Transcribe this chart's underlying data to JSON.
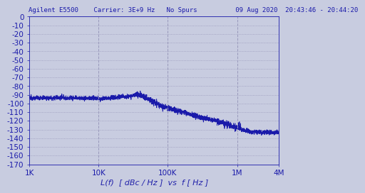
{
  "title_line": "Agilent E5500    Carrier: 3E+9 Hz   No Spurs          09 Aug 2020  20:43:46 - 20:44:20",
  "xlabel": "L(f)  [ dBc / Hz ]  vs  f [ Hz ]",
  "xlim_log": [
    1000,
    4000000
  ],
  "ylim": [
    -170,
    0
  ],
  "yticks": [
    0,
    -10,
    -20,
    -30,
    -40,
    -50,
    -60,
    -70,
    -80,
    -90,
    -100,
    -110,
    -120,
    -130,
    -140,
    -150,
    -160,
    -170
  ],
  "xtick_labels": [
    "1K",
    "10K",
    "100K",
    "1M",
    "4M"
  ],
  "xtick_values": [
    1000,
    10000,
    100000,
    1000000,
    4000000
  ],
  "vline_positions": [
    10000,
    100000,
    1000000
  ],
  "grid_color": "#9999bb",
  "bg_color": "#c8cce0",
  "plot_bg_color": "#c8cce0",
  "line_color": "#1a1aaa",
  "title_color": "#1a1aaa",
  "axis_label_color": "#2222aa",
  "tick_color": "#1a1aaa",
  "border_color": "#1a1aaa",
  "title_fontsize": 6.5,
  "xlabel_fontsize": 8.0,
  "tick_fontsize": 7.5
}
